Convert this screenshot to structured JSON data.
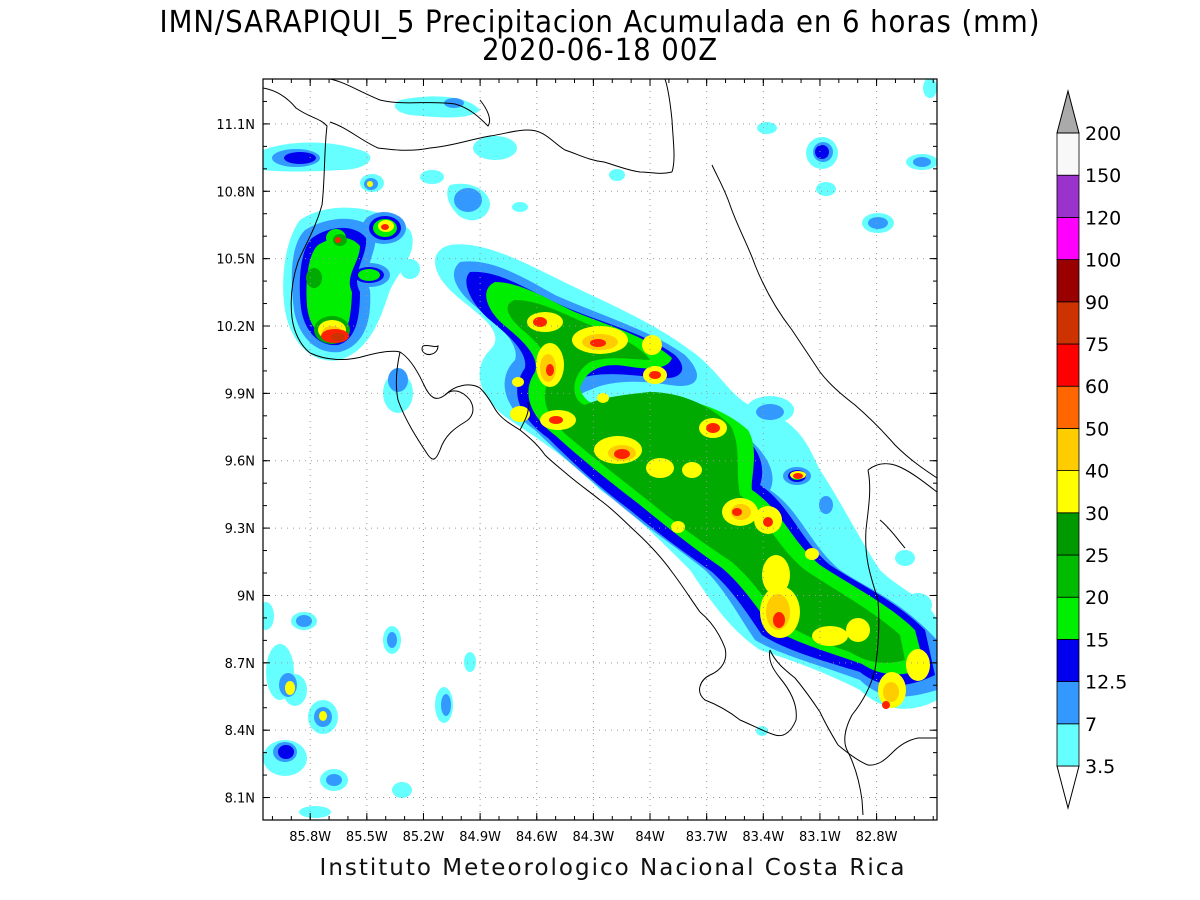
{
  "title": {
    "line1": "IMN/SARAPIQUI_5 Precipitacion Acumulada en 6 horas (mm)",
    "line2": "2020-06-18 00Z"
  },
  "credit": "Instituto Meteorologico Nacional Costa Rica",
  "map": {
    "lon_range": [
      -86.05,
      -82.48
    ],
    "lat_range": [
      8.0,
      11.3
    ],
    "lat_ticks": [
      {
        "value": 11.1,
        "label": "11.1N"
      },
      {
        "value": 10.8,
        "label": "10.8N"
      },
      {
        "value": 10.5,
        "label": "10.5N"
      },
      {
        "value": 10.2,
        "label": "10.2N"
      },
      {
        "value": 9.9,
        "label": "9.9N"
      },
      {
        "value": 9.6,
        "label": "9.6N"
      },
      {
        "value": 9.3,
        "label": "9.3N"
      },
      {
        "value": 9.0,
        "label": "9N"
      },
      {
        "value": 8.7,
        "label": "8.7N"
      },
      {
        "value": 8.4,
        "label": "8.4N"
      },
      {
        "value": 8.1,
        "label": "8.1N"
      }
    ],
    "lon_ticks": [
      {
        "value": -85.8,
        "label": "85.8W"
      },
      {
        "value": -85.5,
        "label": "85.5W"
      },
      {
        "value": -85.2,
        "label": "85.2W"
      },
      {
        "value": -84.9,
        "label": "84.9W"
      },
      {
        "value": -84.6,
        "label": "84.6W"
      },
      {
        "value": -84.3,
        "label": "84.3W"
      },
      {
        "value": -84.0,
        "label": "84W"
      },
      {
        "value": -83.7,
        "label": "83.7W"
      },
      {
        "value": -83.4,
        "label": "83.4W"
      },
      {
        "value": -83.1,
        "label": "83.1W"
      },
      {
        "value": -82.8,
        "label": "82.8W"
      }
    ],
    "grid": true
  },
  "legend": {
    "levels": [
      {
        "label": "3.5",
        "color": "#66ffff"
      },
      {
        "label": "7",
        "color": "#3399ff"
      },
      {
        "label": "12.5",
        "color": "#0000ee"
      },
      {
        "label": "15",
        "color": "#00ee00"
      },
      {
        "label": "20",
        "color": "#00bb00"
      },
      {
        "label": "25",
        "color": "#009900"
      },
      {
        "label": "30",
        "color": "#ffff00"
      },
      {
        "label": "40",
        "color": "#ffcc00"
      },
      {
        "label": "50",
        "color": "#ff6600"
      },
      {
        "label": "60",
        "color": "#ff0000"
      },
      {
        "label": "75",
        "color": "#cc3300"
      },
      {
        "label": "90",
        "color": "#990000"
      },
      {
        "label": "100",
        "color": "#ff00ff"
      },
      {
        "label": "120",
        "color": "#9933cc"
      },
      {
        "label": "150",
        "color": "#f8f8f8"
      },
      {
        "label": "200",
        "color": "#aaaaaa"
      }
    ],
    "under_color": "#ffffff",
    "over_color": "#aaaaaa"
  }
}
